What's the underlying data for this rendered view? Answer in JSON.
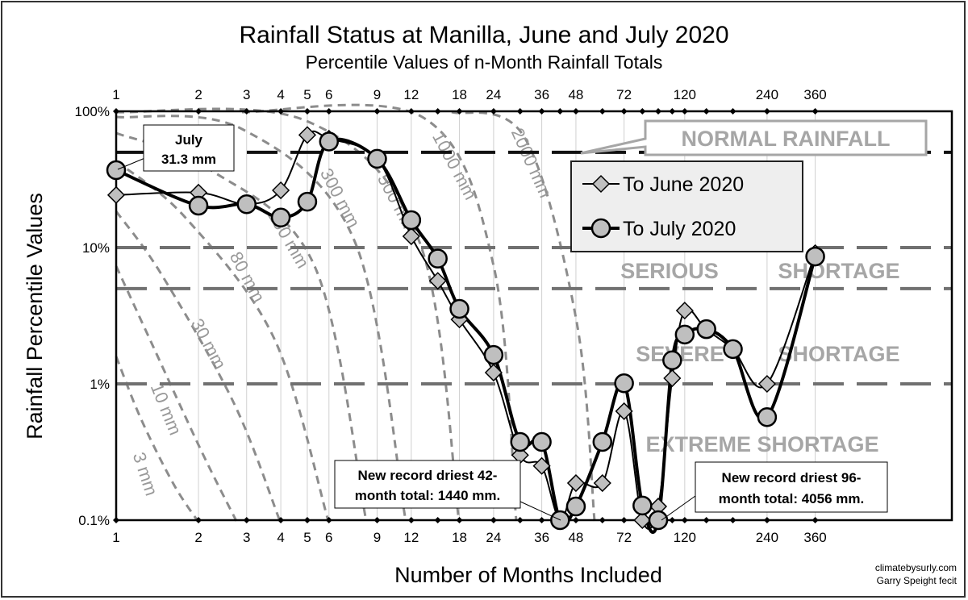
{
  "chart_data": {
    "type": "line",
    "title": "Rainfall Status at Manilla, June and July 2020",
    "subtitle": "Percentile Values of n-Month Rainfall Totals",
    "xlabel": "Number of Months Included",
    "ylabel": "Rainfall Percentile Values",
    "x_scale": "log",
    "y_scale": "log",
    "xlim": [
      1,
      1100
    ],
    "ylim": [
      0.1,
      100
    ],
    "x_ticks": [
      1,
      2,
      3,
      4,
      5,
      6,
      9,
      12,
      18,
      24,
      36,
      48,
      72,
      120,
      240,
      360
    ],
    "y_ticks": [
      {
        "value": 100,
        "label": "100%"
      },
      {
        "value": 10,
        "label": "10%"
      },
      {
        "value": 1,
        "label": "1%"
      },
      {
        "value": 0.1,
        "label": "0.1%"
      }
    ],
    "grid": true,
    "legend_placement": "upper-right",
    "x": [
      1,
      2,
      3,
      4,
      5,
      6,
      9,
      12,
      15,
      18,
      24,
      30,
      36,
      42,
      48,
      60,
      72,
      84,
      96,
      108,
      120,
      144,
      180,
      240,
      360
    ],
    "series": [
      {
        "name": "To June 2020",
        "marker": "diamond",
        "values": [
          24.3,
          25.3,
          20.8,
          26.3,
          67,
          63,
          45,
          12.1,
          5.7,
          2.97,
          1.21,
          0.3,
          0.25,
          0.1,
          0.187,
          0.187,
          0.63,
          0.1,
          0.126,
          1.1,
          3.45,
          2.5,
          1.8,
          1.0,
          9.1
        ]
      },
      {
        "name": "To July 2020",
        "marker": "circle",
        "values": [
          37,
          20.3,
          20.8,
          16.6,
          21.7,
          60,
          44.8,
          15.9,
          8.3,
          3.55,
          1.63,
          0.375,
          0.375,
          0.1,
          0.126,
          0.375,
          1.01,
          0.128,
          0.1,
          1.49,
          2.3,
          2.52,
          1.8,
          0.57,
          8.6
        ]
      }
    ],
    "reference_lines": [
      {
        "value": 50,
        "style": "black-dashed"
      },
      {
        "value": 10,
        "style": "gray-dashed"
      },
      {
        "value": 5,
        "style": "gray-dashed"
      },
      {
        "value": 1,
        "style": "gray-dashed"
      }
    ],
    "zone_labels": {
      "normal": "NORMAL RAINFALL",
      "serious_a": "SERIOUS",
      "serious_b": "SHORTAGE",
      "severe_a": "SEVERE",
      "severe_b": "SHORTAGE",
      "extreme": "EXTREME SHORTAGE"
    },
    "rainfall_curves": [
      "3 mm",
      "10 mm",
      "30 mm",
      "80 mm",
      "150 mm",
      "300 mm",
      "500 mm",
      "1000 mm",
      "2000 mm"
    ],
    "annotations": {
      "july_line1": "July",
      "july_line2": "31.3 mm",
      "rec42_line1": "New record driest 42-",
      "rec42_line2": "month total: 1440 mm.",
      "rec96_line1": "New record driest 96-",
      "rec96_line2": "month total:   4056 mm."
    },
    "colors": {
      "series": "#000000",
      "marker_fill": "#bfbfbf",
      "curves": "#8c8c8c",
      "zone_text": "#a6a6a6",
      "legend_bg": "#eeeeee"
    }
  },
  "credits": {
    "line1": "climatebysurly.com",
    "line2": "Garry Speight fecit"
  }
}
